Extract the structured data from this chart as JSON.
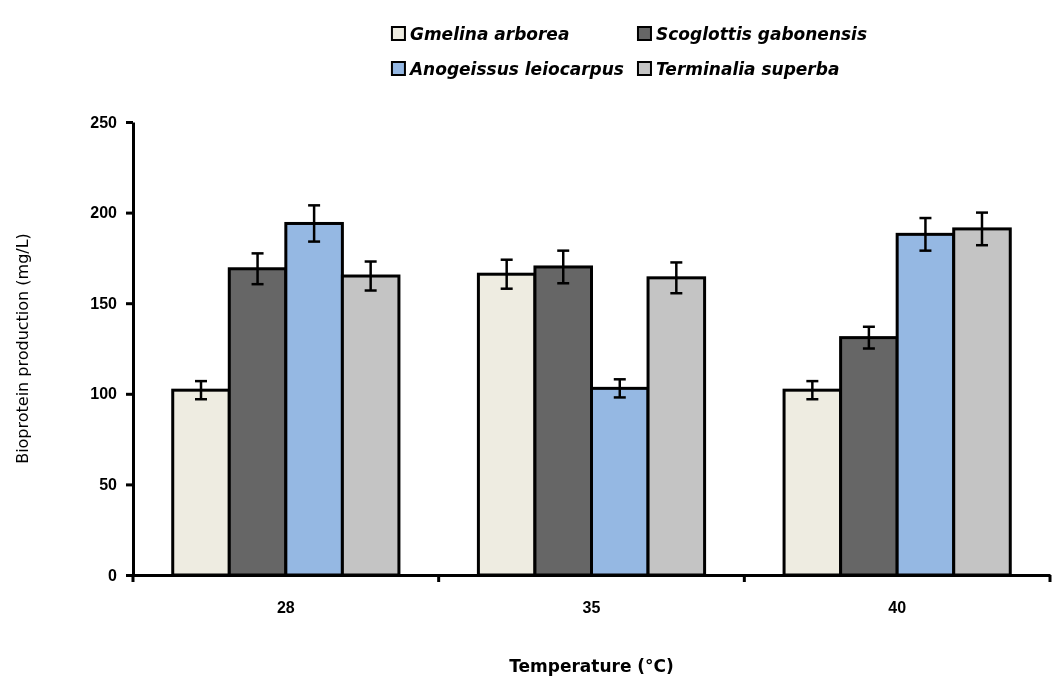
{
  "chart_data": {
    "type": "bar",
    "xlabel": "Temperature (°C)",
    "ylabel": "Bioprotein production (mg/L)",
    "categories": [
      "28",
      "35",
      "40"
    ],
    "series": [
      {
        "name": "Gmelina arborea",
        "color": "#eeece1",
        "values": [
          102,
          166,
          102
        ],
        "errors": [
          5,
          8,
          5
        ]
      },
      {
        "name": "Scoglottis gabonensis",
        "color": "#666666",
        "values": [
          169,
          170,
          131
        ],
        "errors": [
          8.5,
          9,
          6
        ]
      },
      {
        "name": "Anogeissus leiocarpus",
        "color": "#95b8e3",
        "values": [
          194,
          103,
          188
        ],
        "errors": [
          10,
          5,
          9
        ]
      },
      {
        "name": "Terminalia superba",
        "color": "#c4c4c4",
        "values": [
          165,
          164,
          191
        ],
        "errors": [
          8,
          8.5,
          9
        ]
      }
    ],
    "ylim": [
      0,
      250
    ],
    "yticks": [
      0,
      50,
      100,
      150,
      200,
      250
    ],
    "grid": false,
    "legend": "top"
  }
}
